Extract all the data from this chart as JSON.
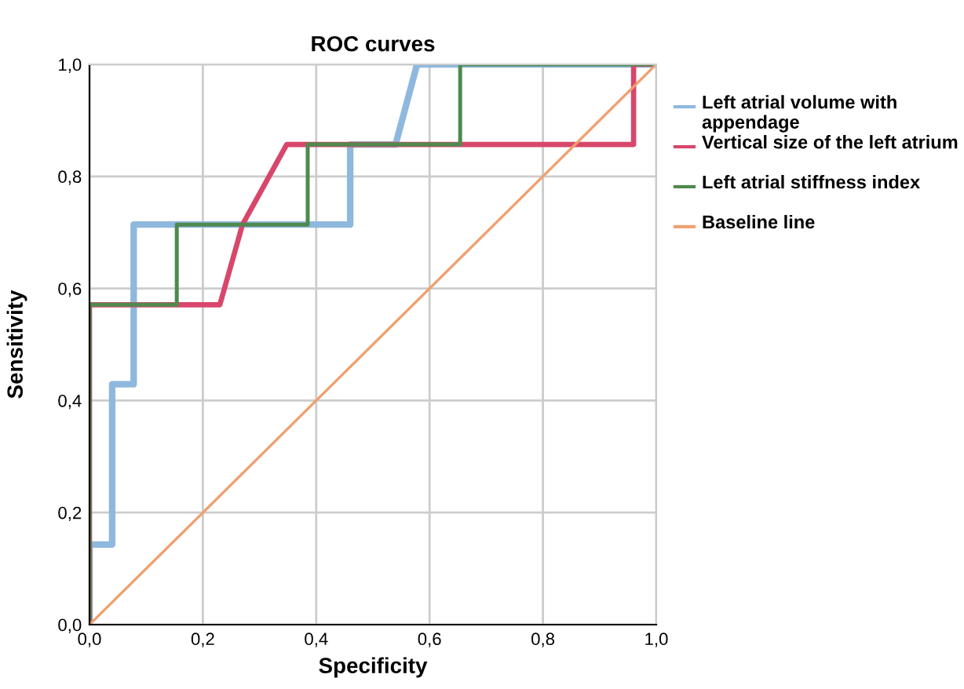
{
  "chart_data": {
    "type": "line",
    "title": "ROC curves",
    "xlabel": "Specificity",
    "ylabel": "Sensitivity",
    "xlim": [
      0,
      1
    ],
    "ylim": [
      0,
      1
    ],
    "xticks": [
      {
        "value": 0,
        "label": "0,0"
      },
      {
        "value": 0.2,
        "label": "0,2"
      },
      {
        "value": 0.4,
        "label": "0,4"
      },
      {
        "value": 0.6,
        "label": "0,6"
      },
      {
        "value": 0.8,
        "label": "0,8"
      },
      {
        "value": 1,
        "label": "1,0"
      }
    ],
    "yticks": [
      {
        "value": 0,
        "label": "0,0"
      },
      {
        "value": 0.2,
        "label": "0,2"
      },
      {
        "value": 0.4,
        "label": "0,4"
      },
      {
        "value": 0.6,
        "label": "0,6"
      },
      {
        "value": 0.8,
        "label": "0,8"
      },
      {
        "value": 1,
        "label": "1,0"
      }
    ],
    "grid": true,
    "legend": "right",
    "marker": "none",
    "line_style": "solid",
    "series": [
      {
        "name": "Left atrial volume with appendage",
        "color": "#8fb8de",
        "x": [
          0,
          0,
          0.04,
          0.04,
          0.078,
          0.078,
          0.46,
          0.46,
          0.54,
          0.578,
          1
        ],
        "values": [
          0,
          0.143,
          0.143,
          0.429,
          0.429,
          0.714,
          0.714,
          0.857,
          0.857,
          1,
          1
        ]
      },
      {
        "name": "Vertical size of the left atrium",
        "color": "#d8476b",
        "x": [
          0,
          0,
          0.23,
          0.27,
          0.348,
          0.96,
          0.96,
          1
        ],
        "values": [
          0,
          0.571,
          0.571,
          0.714,
          0.857,
          0.857,
          1,
          1
        ]
      },
      {
        "name": "Left atrial stiffness index",
        "color": "#4e8a4e",
        "x": [
          0,
          0,
          0.154,
          0.154,
          0.385,
          0.385,
          0.654,
          0.654,
          1
        ],
        "values": [
          0,
          0.571,
          0.571,
          0.714,
          0.714,
          0.857,
          0.857,
          1,
          1
        ]
      },
      {
        "name": "Baseline line",
        "color": "#f0a070",
        "x": [
          0,
          1
        ],
        "values": [
          0,
          1
        ]
      }
    ]
  }
}
